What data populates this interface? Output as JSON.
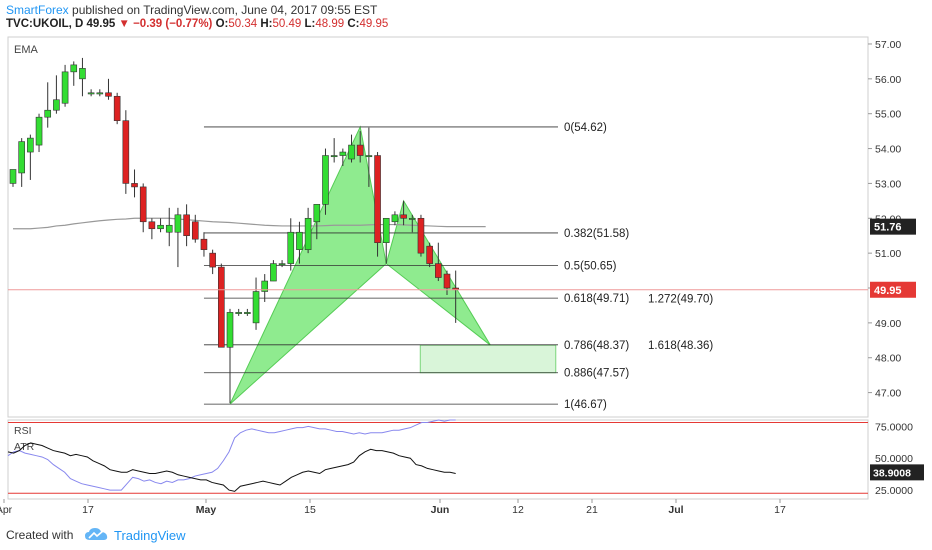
{
  "header": {
    "author": "SmartForex",
    "published_text": "published on TradingView.com, June 04, 2017 09:55 EST",
    "symbol": "TVC:UKOIL, D",
    "last": "49.95",
    "change": "−0.39 (−0.77%)",
    "open_label": "O:",
    "open": "50.34",
    "high_label": "H:",
    "high": "50.49",
    "low_label": "L:",
    "low": "48.99",
    "close_label": "C:",
    "close": "49.95"
  },
  "footer": {
    "created_with": "Created with",
    "brand": "TradingView"
  },
  "colors": {
    "up": "#33dd33",
    "down": "#dd2222",
    "pattern_fill": "#7be87b",
    "accent": "#2196f3",
    "price_badge": "#e53935",
    "rsi": "#8888ee",
    "ema": "#999999",
    "atr": "#111111"
  },
  "chart_data": [
    {
      "type": "candlestick",
      "title": "TVC:UKOIL, D",
      "indicator_label": "EMA",
      "ylim": [
        46.3,
        57.2
      ],
      "y_ticks": [
        "57.00",
        "56.00",
        "55.00",
        "54.00",
        "53.00",
        "52.00",
        "51.00",
        "50.00",
        "49.00",
        "48.00",
        "47.00"
      ],
      "x_ticks": [
        "Apr",
        "17",
        "May",
        "15",
        "Jun",
        "12",
        "21",
        "Jul",
        "17"
      ],
      "last_price_label": "49.95",
      "ema_label": "51.76",
      "candles": [
        {
          "o": 53.0,
          "h": 53.4,
          "l": 52.9,
          "c": 53.4
        },
        {
          "o": 53.3,
          "h": 54.3,
          "l": 52.9,
          "c": 54.2
        },
        {
          "o": 53.9,
          "h": 54.4,
          "l": 53.1,
          "c": 54.3
        },
        {
          "o": 54.1,
          "h": 55.0,
          "l": 53.9,
          "c": 54.9
        },
        {
          "o": 54.9,
          "h": 55.9,
          "l": 54.6,
          "c": 55.1
        },
        {
          "o": 55.1,
          "h": 56.1,
          "l": 55.0,
          "c": 55.4
        },
        {
          "o": 55.3,
          "h": 56.4,
          "l": 55.2,
          "c": 56.2
        },
        {
          "o": 56.2,
          "h": 56.5,
          "l": 55.8,
          "c": 56.4
        },
        {
          "o": 56.0,
          "h": 56.6,
          "l": 55.5,
          "c": 56.3
        },
        {
          "o": 55.6,
          "h": 55.7,
          "l": 55.5,
          "c": 55.6
        },
        {
          "o": 55.6,
          "h": 55.7,
          "l": 55.5,
          "c": 55.6
        },
        {
          "o": 55.6,
          "h": 56.0,
          "l": 55.4,
          "c": 55.5
        },
        {
          "o": 55.5,
          "h": 55.6,
          "l": 54.7,
          "c": 54.8
        },
        {
          "o": 54.8,
          "h": 55.1,
          "l": 52.7,
          "c": 53.0
        },
        {
          "o": 53.0,
          "h": 53.4,
          "l": 52.6,
          "c": 52.9
        },
        {
          "o": 52.9,
          "h": 53.0,
          "l": 51.6,
          "c": 51.9
        },
        {
          "o": 51.9,
          "h": 52.0,
          "l": 51.4,
          "c": 51.7
        },
        {
          "o": 51.7,
          "h": 52.0,
          "l": 51.6,
          "c": 51.8
        },
        {
          "o": 51.6,
          "h": 52.3,
          "l": 51.2,
          "c": 51.8
        },
        {
          "o": 51.6,
          "h": 52.3,
          "l": 50.6,
          "c": 52.1
        },
        {
          "o": 52.1,
          "h": 52.4,
          "l": 51.2,
          "c": 51.5
        },
        {
          "o": 51.9,
          "h": 52.1,
          "l": 51.3,
          "c": 51.4
        },
        {
          "o": 51.4,
          "h": 51.6,
          "l": 50.9,
          "c": 51.1
        },
        {
          "o": 51.0,
          "h": 51.1,
          "l": 50.4,
          "c": 50.6
        },
        {
          "o": 50.6,
          "h": 50.7,
          "l": 48.3,
          "c": 48.3
        },
        {
          "o": 48.3,
          "h": 49.4,
          "l": 46.7,
          "c": 49.3
        },
        {
          "o": 49.3,
          "h": 49.4,
          "l": 49.2,
          "c": 49.3
        },
        {
          "o": 49.3,
          "h": 49.4,
          "l": 49.2,
          "c": 49.3
        },
        {
          "o": 49.0,
          "h": 50.3,
          "l": 48.8,
          "c": 49.9
        },
        {
          "o": 49.9,
          "h": 50.4,
          "l": 49.6,
          "c": 50.2
        },
        {
          "o": 50.2,
          "h": 50.8,
          "l": 50.2,
          "c": 50.7
        },
        {
          "o": 50.7,
          "h": 50.8,
          "l": 50.6,
          "c": 50.7
        },
        {
          "o": 50.7,
          "h": 52.0,
          "l": 50.5,
          "c": 51.6
        },
        {
          "o": 51.1,
          "h": 51.9,
          "l": 50.7,
          "c": 51.6
        },
        {
          "o": 51.1,
          "h": 52.3,
          "l": 51.0,
          "c": 52.0
        },
        {
          "o": 51.9,
          "h": 52.4,
          "l": 51.4,
          "c": 52.4
        },
        {
          "o": 52.4,
          "h": 54.0,
          "l": 52.1,
          "c": 53.8
        },
        {
          "o": 53.8,
          "h": 54.3,
          "l": 53.6,
          "c": 53.8
        },
        {
          "o": 53.8,
          "h": 54.0,
          "l": 53.5,
          "c": 53.9
        },
        {
          "o": 53.7,
          "h": 54.4,
          "l": 53.6,
          "c": 54.1
        },
        {
          "o": 54.1,
          "h": 54.5,
          "l": 53.6,
          "c": 53.8
        },
        {
          "o": 53.8,
          "h": 54.6,
          "l": 52.9,
          "c": 53.8
        },
        {
          "o": 53.8,
          "h": 53.9,
          "l": 50.9,
          "c": 51.3
        },
        {
          "o": 51.3,
          "h": 52.0,
          "l": 50.7,
          "c": 52.0
        },
        {
          "o": 51.9,
          "h": 52.2,
          "l": 51.8,
          "c": 52.1
        },
        {
          "o": 52.1,
          "h": 52.5,
          "l": 51.8,
          "c": 52.0
        },
        {
          "o": 52.0,
          "h": 52.1,
          "l": 51.6,
          "c": 52.0
        },
        {
          "o": 52.0,
          "h": 52.1,
          "l": 50.9,
          "c": 51.0
        },
        {
          "o": 51.2,
          "h": 51.3,
          "l": 50.6,
          "c": 50.7
        },
        {
          "o": 50.7,
          "h": 51.3,
          "l": 50.2,
          "c": 50.3
        },
        {
          "o": 50.4,
          "h": 50.5,
          "l": 49.8,
          "c": 50.0
        },
        {
          "o": 50.0,
          "h": 50.5,
          "l": 49.0,
          "c": 49.95
        }
      ],
      "ema": [
        51.7,
        51.7,
        51.7,
        51.72,
        51.74,
        51.78,
        51.8,
        51.84,
        51.87,
        51.9,
        51.93,
        51.95,
        51.97,
        51.98,
        52.0,
        52.0,
        52.0,
        52.0,
        52.0,
        51.98,
        51.96,
        51.94,
        51.92,
        51.9,
        51.89,
        51.88,
        51.86,
        51.84,
        51.82,
        51.8,
        51.79,
        51.78,
        51.78,
        51.78,
        51.78,
        51.78,
        51.79,
        51.8,
        51.8,
        51.8,
        51.8,
        51.81,
        51.82,
        51.82,
        51.82,
        51.81,
        51.8,
        51.79,
        51.78,
        51.77,
        51.76,
        51.76
      ],
      "fibonacci": [
        {
          "level": "0",
          "price": 54.62,
          "label": "0(54.62)"
        },
        {
          "level": "0.382",
          "price": 51.58,
          "label": "0.382(51.58)"
        },
        {
          "level": "0.5",
          "price": 50.65,
          "label": "0.5(50.65)"
        },
        {
          "level": "0.618",
          "price": 49.71,
          "label": "0.618(49.71)"
        },
        {
          "level": "0.786",
          "price": 48.37,
          "label": "0.786(48.37)"
        },
        {
          "level": "0.886",
          "price": 47.57,
          "label": "0.886(47.57)"
        },
        {
          "level": "1",
          "price": 46.67,
          "label": "1(46.67)"
        }
      ],
      "extensions": [
        {
          "level": "1.272",
          "price": 49.7,
          "label": "1.272(49.70)"
        },
        {
          "level": "1.618",
          "price": 48.36,
          "label": "1.618(48.36)"
        }
      ],
      "harmonic_pattern": [
        {
          "bar": 25,
          "price": 46.67
        },
        {
          "bar": 40,
          "price": 54.62
        },
        {
          "bar": 43,
          "price": 50.7
        },
        {
          "bar": 45,
          "price": 52.5
        },
        {
          "bar": 55,
          "price": 48.36
        }
      ],
      "target_zone": {
        "bar_start": 46,
        "bar_end": 57,
        "price_top": 48.36,
        "price_bottom": 47.57
      }
    },
    {
      "type": "line",
      "title": "RSI / ATR",
      "indicator_labels": [
        "RSI",
        "ATR"
      ],
      "y_ticks": [
        "75.0000",
        "50.0000",
        "25.0000"
      ],
      "ylim": [
        18,
        80
      ],
      "levels": [
        78,
        22.5
      ],
      "rsi_label": "",
      "atr_label": "38.9008",
      "series": [
        {
          "name": "RSI",
          "values": [
            52,
            55,
            56,
            54,
            53,
            52,
            51,
            49,
            45,
            42,
            39,
            34,
            32,
            30,
            29,
            28,
            27,
            26,
            25,
            25,
            25,
            30,
            35,
            34,
            32,
            33,
            31,
            30,
            32,
            31,
            33,
            33,
            34,
            36,
            37,
            38,
            39,
            42,
            48,
            55,
            66,
            70,
            72,
            73,
            72,
            71,
            70,
            70,
            71,
            72,
            73,
            74,
            74,
            75,
            74,
            73,
            73,
            72,
            71,
            71,
            70,
            69,
            70,
            69,
            70,
            70,
            70,
            71,
            72,
            72,
            73,
            74,
            76,
            78,
            78,
            79,
            80,
            79,
            80,
            80
          ]
        },
        {
          "name": "ATR",
          "values": [
            55,
            54,
            56,
            60,
            62,
            61,
            60,
            58,
            56,
            55,
            54,
            52,
            53,
            52,
            51,
            48,
            46,
            44,
            41,
            40,
            39,
            39,
            41,
            40,
            39,
            38,
            38,
            39,
            40,
            39,
            37,
            36,
            35,
            34,
            33,
            33,
            31,
            30,
            29,
            25,
            24,
            28,
            29,
            30,
            31,
            32,
            31,
            30,
            29,
            32,
            35,
            37,
            39,
            40,
            39,
            38,
            41,
            42,
            43,
            44,
            45,
            47,
            52,
            55,
            57,
            56,
            56,
            55,
            54,
            52,
            51,
            50,
            45,
            44,
            42,
            41,
            40,
            39,
            39,
            38
          ]
        }
      ]
    }
  ]
}
